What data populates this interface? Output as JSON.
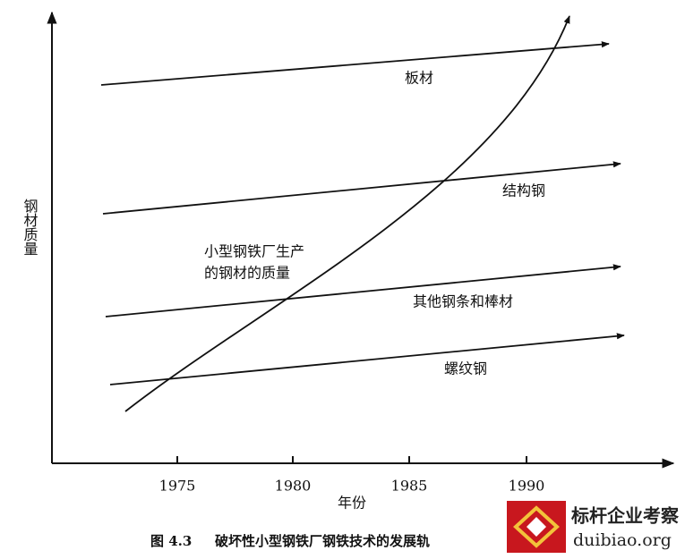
{
  "axes": {
    "y_label": "钢材质量",
    "x_label": "年份",
    "x_ticks": [
      "1975",
      "1980",
      "1985",
      "1990"
    ]
  },
  "lines": [
    {
      "label": "板材"
    },
    {
      "label": "结构钢"
    },
    {
      "label": "其他钢条和棒材"
    },
    {
      "label": "螺纹钢"
    }
  ],
  "curve": {
    "label_lines": [
      "小型钢铁厂生产",
      "的钢材的质量"
    ]
  },
  "caption": {
    "number": "图 4.3",
    "text": "破坏性小型钢铁厂钢铁技术的发展轨"
  },
  "watermark": {
    "name": "标杆企业考察",
    "url": "duibiao.org"
  }
}
